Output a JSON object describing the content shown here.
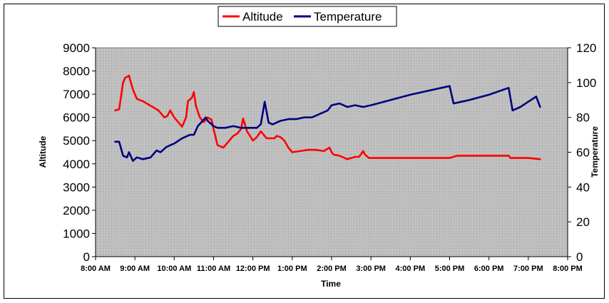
{
  "chart_data": {
    "type": "line",
    "title": "",
    "xlabel": "Time",
    "ylabel_left": "Altitude",
    "ylabel_right": "Temperature",
    "x_ticks": [
      "8:00 AM",
      "9:00 AM",
      "10:00 AM",
      "11:00 AM",
      "12:00 PM",
      "1:00 PM",
      "2:00 PM",
      "3:00 PM",
      "4:00 PM",
      "5:00 PM",
      "6:00 PM",
      "7:00 PM",
      "8:00 PM"
    ],
    "xlim_hours": [
      8,
      20
    ],
    "y_left_ticks": [
      "0",
      "1000",
      "2000",
      "3000",
      "4000",
      "5000",
      "6000",
      "7000",
      "8000",
      "9000"
    ],
    "ylim_left": [
      0,
      9000
    ],
    "y_right_ticks": [
      "0",
      "20",
      "40",
      "60",
      "80",
      "100",
      "120"
    ],
    "ylim_right": [
      0,
      120
    ],
    "legend": [
      {
        "name": "Altitude",
        "color": "#ff0000"
      },
      {
        "name": "Temperature",
        "color": "#000080"
      }
    ],
    "series": [
      {
        "name": "Altitude",
        "axis": "left",
        "color": "#ff0000",
        "x": [
          8.5,
          8.6,
          8.7,
          8.75,
          8.85,
          8.95,
          9.05,
          9.2,
          9.4,
          9.6,
          9.75,
          9.82,
          9.9,
          10.0,
          10.1,
          10.2,
          10.3,
          10.35,
          10.45,
          10.5,
          10.55,
          10.65,
          10.75,
          10.85,
          10.95,
          11.0,
          11.1,
          11.25,
          11.4,
          11.5,
          11.6,
          11.7,
          11.75,
          11.85,
          12.0,
          12.1,
          12.2,
          12.35,
          12.45,
          12.55,
          12.6,
          12.7,
          12.8,
          12.9,
          13.0,
          13.2,
          13.4,
          13.6,
          13.8,
          13.95,
          14.0,
          14.05,
          14.2,
          14.4,
          14.6,
          14.7,
          14.8,
          14.85,
          14.95,
          15.5,
          16.5,
          17.0,
          17.2,
          18.0,
          18.5,
          18.55,
          18.6,
          19.0,
          19.3
        ],
        "values": [
          6300,
          6350,
          7500,
          7700,
          7800,
          7200,
          6800,
          6700,
          6500,
          6300,
          6000,
          6050,
          6300,
          6000,
          5800,
          5600,
          6000,
          6700,
          6850,
          7100,
          6500,
          6000,
          5800,
          6000,
          5900,
          5500,
          4800,
          4700,
          5000,
          5200,
          5300,
          5500,
          5950,
          5400,
          5000,
          5150,
          5400,
          5100,
          5100,
          5100,
          5200,
          5150,
          5000,
          4700,
          4500,
          4550,
          4600,
          4600,
          4550,
          4700,
          4500,
          4400,
          4350,
          4200,
          4300,
          4300,
          4550,
          4400,
          4250,
          4250,
          4250,
          4250,
          4350,
          4350,
          4350,
          4250,
          4250,
          4250,
          4200
        ]
      },
      {
        "name": "Temperature",
        "axis": "right",
        "color": "#000080",
        "x": [
          8.5,
          8.6,
          8.7,
          8.8,
          8.85,
          8.95,
          9.05,
          9.2,
          9.4,
          9.55,
          9.65,
          9.8,
          9.9,
          10.0,
          10.2,
          10.4,
          10.5,
          10.6,
          10.8,
          10.85,
          10.95,
          11.0,
          11.1,
          11.3,
          11.5,
          11.7,
          11.9,
          12.1,
          12.2,
          12.3,
          12.4,
          12.5,
          12.7,
          12.9,
          13.1,
          13.3,
          13.5,
          13.7,
          13.9,
          14.0,
          14.2,
          14.3,
          14.4,
          14.6,
          14.8,
          15.0,
          16.0,
          17.0,
          17.1,
          17.3,
          17.5,
          18.0,
          18.5,
          18.6,
          18.8,
          19.0,
          19.2,
          19.3
        ],
        "values": [
          66,
          66,
          58,
          57,
          60,
          55,
          57,
          56,
          57,
          61,
          60,
          63,
          64,
          65,
          68,
          70,
          70,
          75,
          80,
          78,
          76,
          75,
          74,
          74,
          75,
          74,
          74,
          74,
          76,
          89,
          77,
          76,
          78,
          79,
          79,
          80,
          80,
          82,
          84,
          87,
          88,
          87,
          86,
          87,
          86,
          87,
          93,
          98,
          88,
          89,
          90,
          93,
          97,
          84,
          86,
          89,
          92,
          86
        ]
      }
    ]
  }
}
